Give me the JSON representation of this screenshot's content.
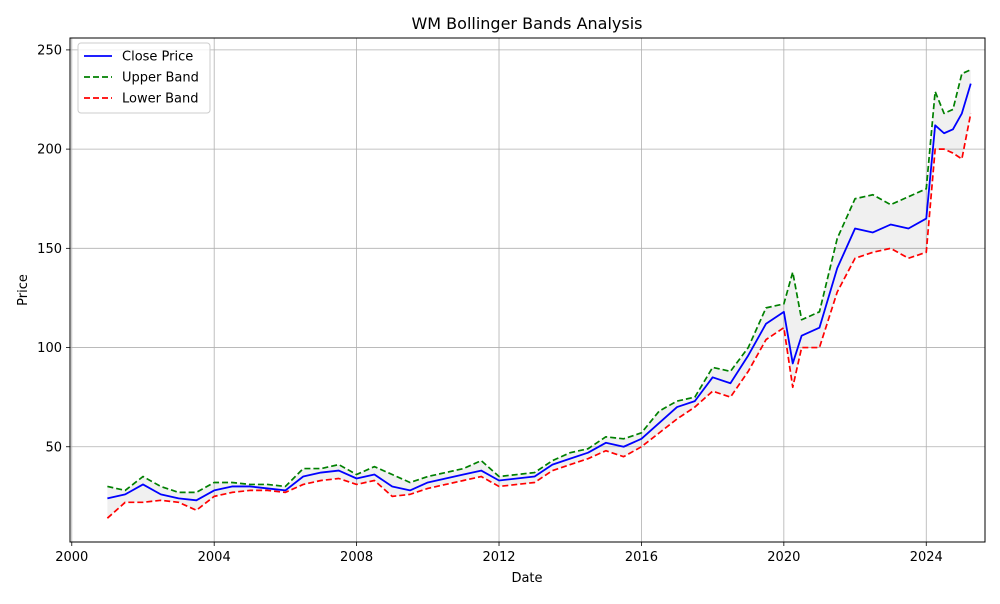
{
  "chart_data": {
    "type": "line",
    "title": "WM Bollinger Bands Analysis",
    "xlabel": "Date",
    "ylabel": "Price",
    "xlim": [
      1999.95,
      2025.65
    ],
    "ylim": [
      2,
      256
    ],
    "x_ticks": [
      2000,
      2004,
      2008,
      2012,
      2016,
      2020,
      2024
    ],
    "x_tick_labels": [
      "2000",
      "2004",
      "2008",
      "2012",
      "2016",
      "2020",
      "2024"
    ],
    "y_ticks": [
      50,
      100,
      150,
      200,
      250
    ],
    "y_tick_labels": [
      "50",
      "100",
      "150",
      "200",
      "250"
    ],
    "grid": true,
    "legend_position": "top-left",
    "series": [
      {
        "name": "Close Price",
        "color": "#0000ff",
        "style": "solid",
        "x": [
          2001.0,
          2001.5,
          2002.0,
          2002.5,
          2003.0,
          2003.5,
          2004.0,
          2004.5,
          2005.0,
          2005.5,
          2006.0,
          2006.5,
          2007.0,
          2007.5,
          2008.0,
          2008.5,
          2009.0,
          2009.5,
          2010.0,
          2010.5,
          2011.0,
          2011.5,
          2012.0,
          2012.5,
          2013.0,
          2013.5,
          2014.0,
          2014.5,
          2015.0,
          2015.5,
          2016.0,
          2016.5,
          2017.0,
          2017.5,
          2018.0,
          2018.5,
          2019.0,
          2019.5,
          2020.0,
          2020.25,
          2020.5,
          2021.0,
          2021.5,
          2022.0,
          2022.5,
          2023.0,
          2023.5,
          2024.0,
          2024.25,
          2024.5,
          2024.75,
          2025.0,
          2025.25
        ],
        "y": [
          24,
          26,
          31,
          26,
          24,
          23,
          28,
          30,
          30,
          29,
          28,
          35,
          37,
          38,
          34,
          36,
          30,
          28,
          32,
          34,
          36,
          38,
          33,
          34,
          35,
          41,
          44,
          47,
          52,
          50,
          54,
          62,
          70,
          73,
          85,
          82,
          96,
          112,
          118,
          92,
          106,
          110,
          140,
          160,
          158,
          162,
          160,
          165,
          212,
          208,
          210,
          218,
          233
        ]
      },
      {
        "name": "Upper Band",
        "color": "#008000",
        "style": "dashed",
        "x": [
          2001.0,
          2001.5,
          2002.0,
          2002.5,
          2003.0,
          2003.5,
          2004.0,
          2004.5,
          2005.0,
          2005.5,
          2006.0,
          2006.5,
          2007.0,
          2007.5,
          2008.0,
          2008.5,
          2009.0,
          2009.5,
          2010.0,
          2010.5,
          2011.0,
          2011.5,
          2012.0,
          2012.5,
          2013.0,
          2013.5,
          2014.0,
          2014.5,
          2015.0,
          2015.5,
          2016.0,
          2016.5,
          2017.0,
          2017.5,
          2018.0,
          2018.5,
          2019.0,
          2019.5,
          2020.0,
          2020.25,
          2020.5,
          2021.0,
          2021.5,
          2022.0,
          2022.5,
          2023.0,
          2023.5,
          2024.0,
          2024.25,
          2024.5,
          2024.75,
          2025.0,
          2025.25
        ],
        "y": [
          30,
          28,
          35,
          30,
          27,
          27,
          32,
          32,
          31,
          31,
          30,
          39,
          39,
          41,
          36,
          40,
          36,
          32,
          35,
          37,
          39,
          43,
          35,
          36,
          37,
          43,
          47,
          49,
          55,
          54,
          57,
          68,
          73,
          75,
          90,
          88,
          100,
          120,
          122,
          138,
          114,
          118,
          155,
          175,
          177,
          172,
          176,
          180,
          229,
          218,
          220,
          238,
          240
        ]
      },
      {
        "name": "Lower Band",
        "color": "#ff0000",
        "style": "dashed",
        "x": [
          2001.0,
          2001.5,
          2002.0,
          2002.5,
          2003.0,
          2003.5,
          2004.0,
          2004.5,
          2005.0,
          2005.5,
          2006.0,
          2006.5,
          2007.0,
          2007.5,
          2008.0,
          2008.5,
          2009.0,
          2009.5,
          2010.0,
          2010.5,
          2011.0,
          2011.5,
          2012.0,
          2012.5,
          2013.0,
          2013.5,
          2014.0,
          2014.5,
          2015.0,
          2015.5,
          2016.0,
          2016.5,
          2017.0,
          2017.5,
          2018.0,
          2018.5,
          2019.0,
          2019.5,
          2020.0,
          2020.25,
          2020.5,
          2021.0,
          2021.5,
          2022.0,
          2022.5,
          2023.0,
          2023.5,
          2024.0,
          2024.25,
          2024.5,
          2024.75,
          2025.0,
          2025.25
        ],
        "y": [
          14,
          22,
          22,
          23,
          22,
          18,
          25,
          27,
          28,
          28,
          27,
          31,
          33,
          34,
          31,
          33,
          25,
          26,
          29,
          31,
          33,
          35,
          30,
          31,
          32,
          38,
          41,
          44,
          48,
          45,
          50,
          57,
          64,
          70,
          78,
          75,
          88,
          104,
          110,
          80,
          100,
          100,
          128,
          145,
          148,
          150,
          145,
          148,
          200,
          200,
          198,
          195,
          218
        ]
      }
    ]
  }
}
